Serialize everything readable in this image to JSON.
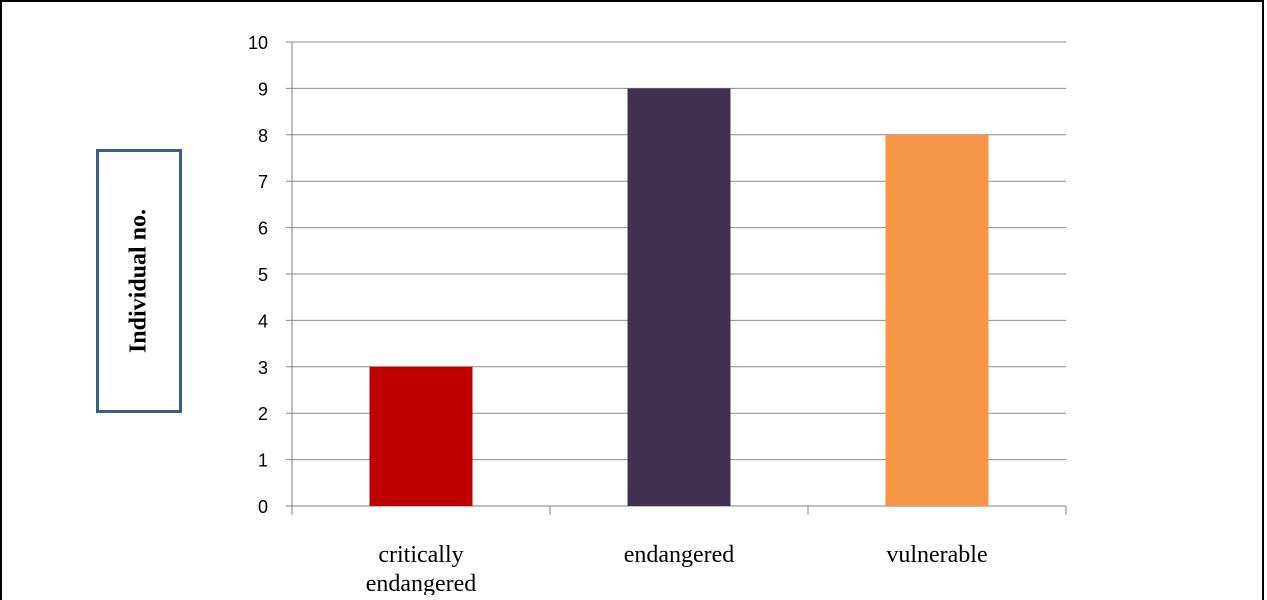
{
  "chart_data": {
    "type": "bar",
    "categories": [
      "critically endangered",
      "endangered",
      "vulnerable"
    ],
    "category_lines": [
      [
        "critically",
        "endangered"
      ],
      [
        "endangered"
      ],
      [
        "vulnerable"
      ]
    ],
    "values": [
      3,
      9,
      8
    ],
    "colors": [
      "#c00000",
      "#403151",
      "#f79646"
    ],
    "title": "",
    "xlabel": "",
    "ylabel": "Individual no.",
    "ylim": [
      0,
      10
    ],
    "yticks": [
      0,
      1,
      2,
      3,
      4,
      5,
      6,
      7,
      8,
      9,
      10
    ],
    "grid": true,
    "legend": "none"
  }
}
